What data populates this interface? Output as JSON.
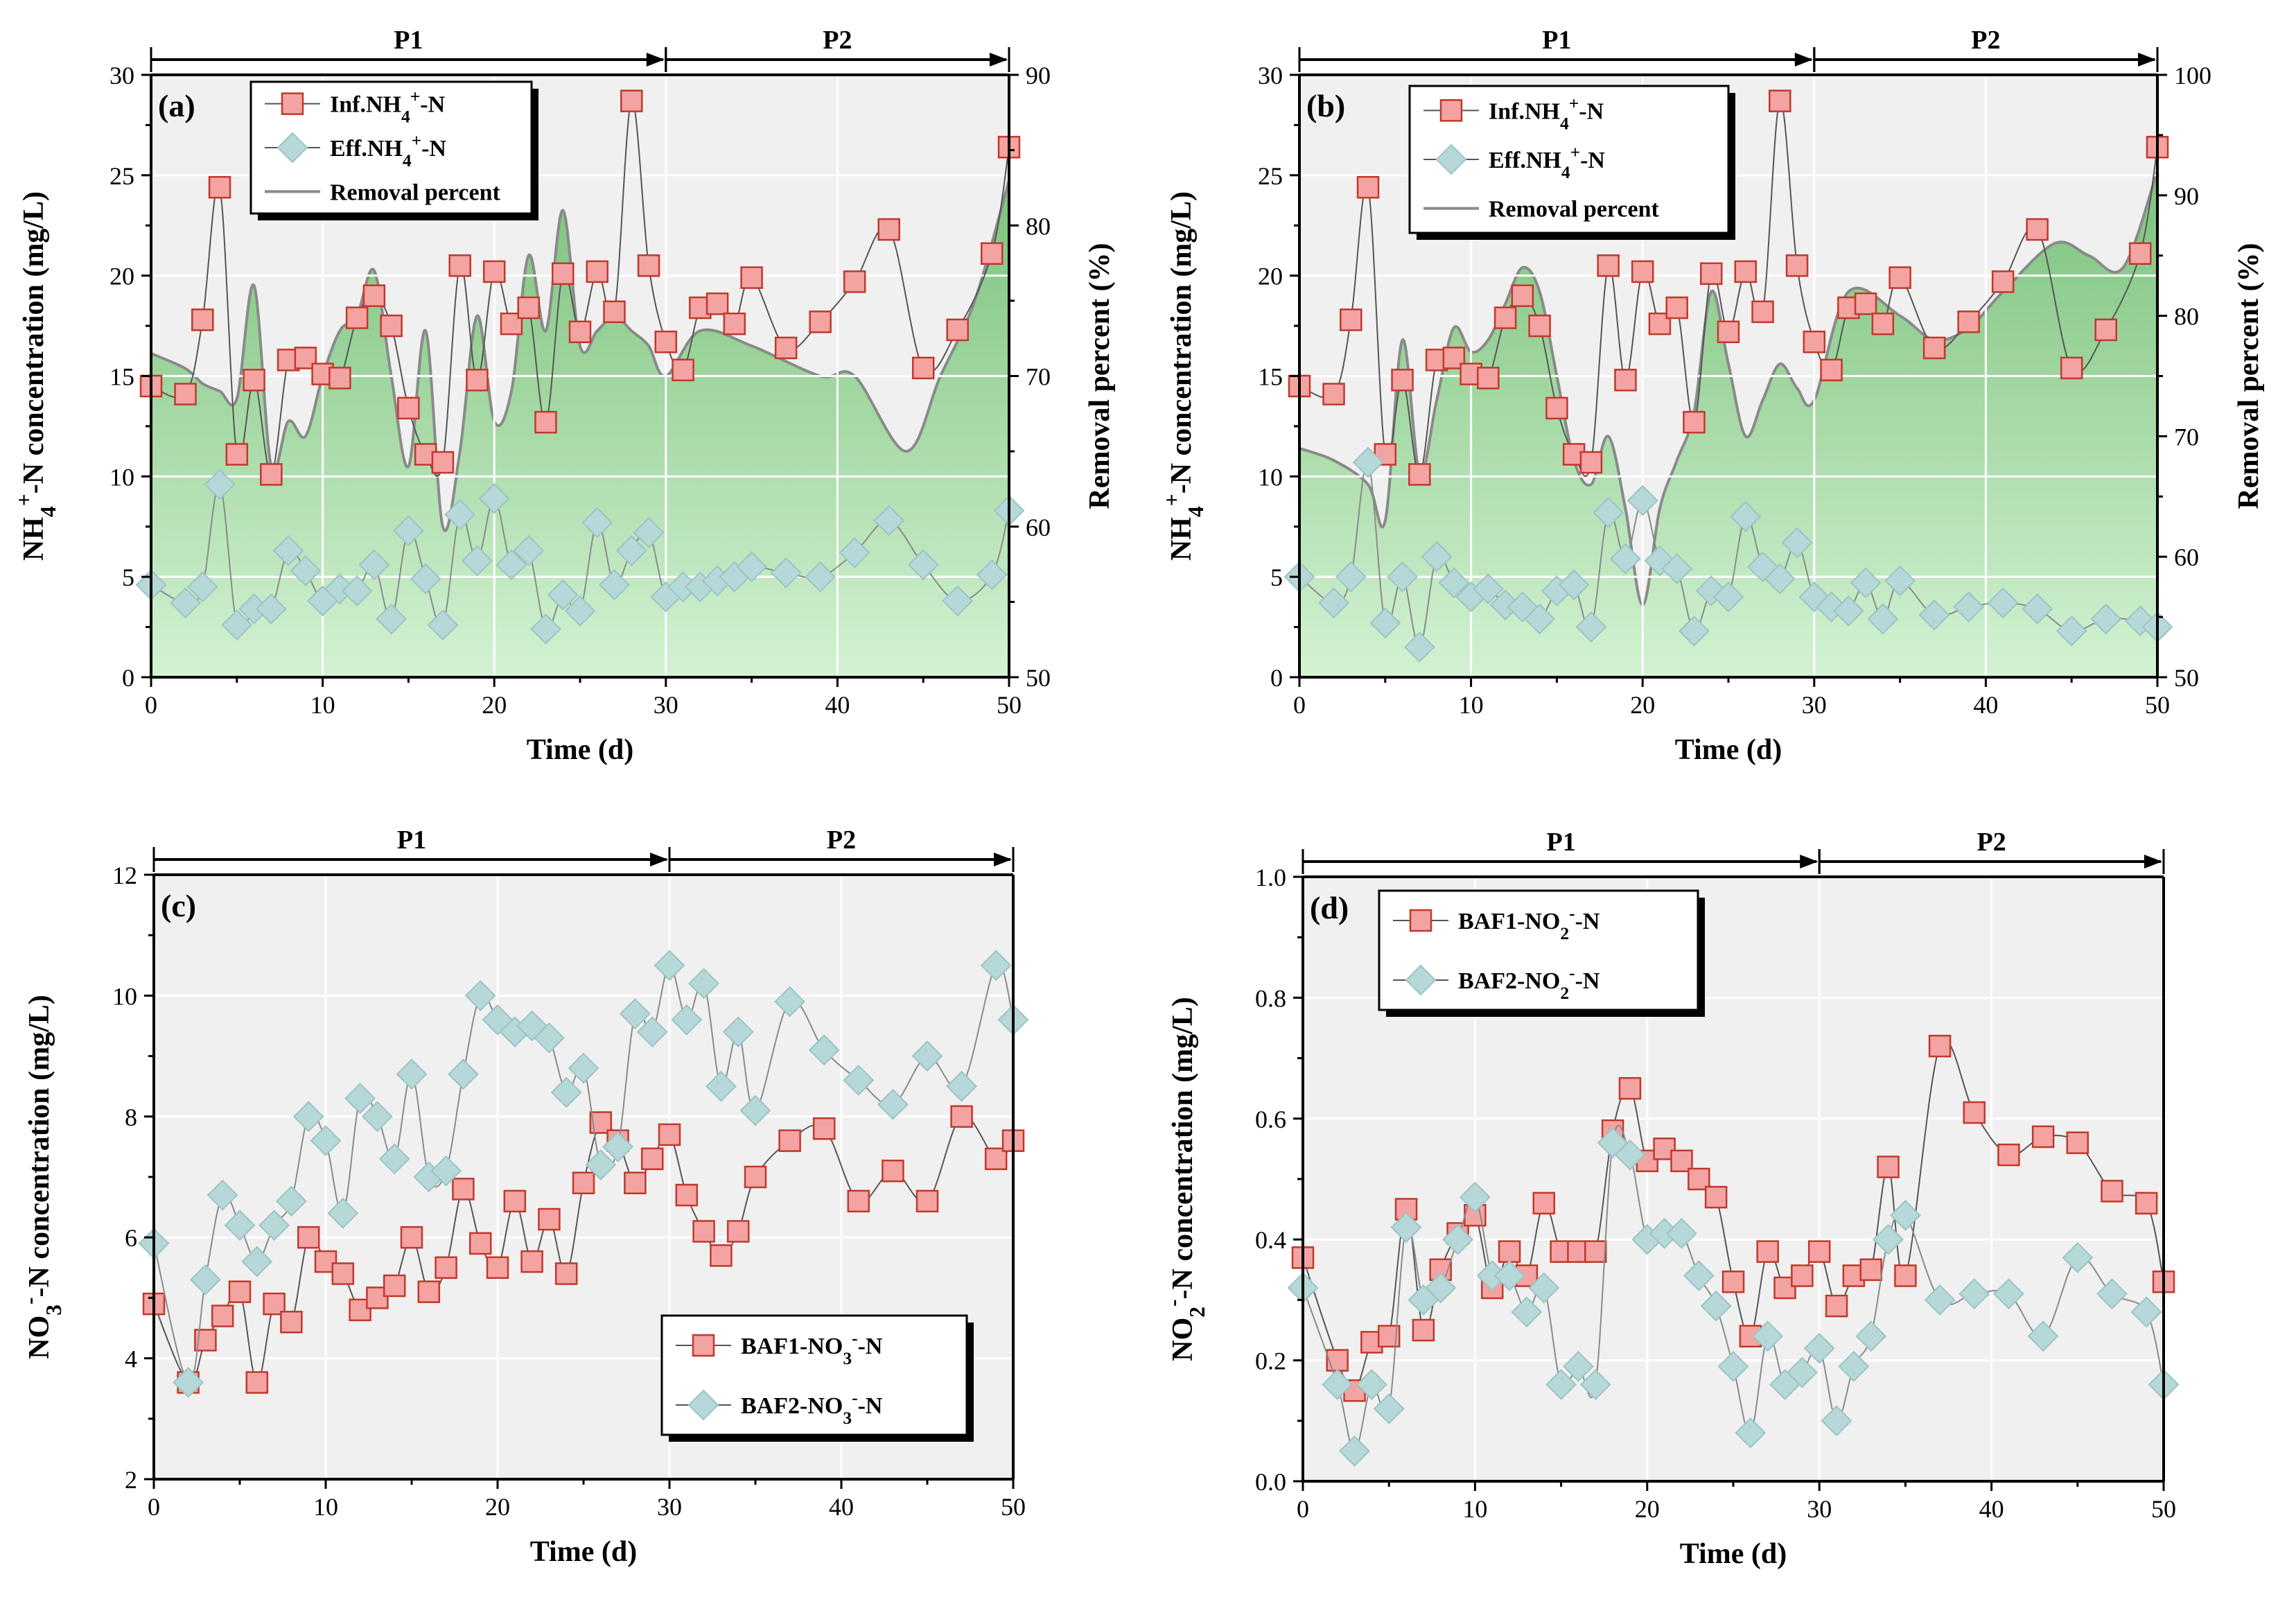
{
  "chart_data": [
    {
      "type": "line",
      "panel_label": "(a)",
      "xlabel": "Time (d)",
      "ylabel": "NH4+-N concentration (mg/L)",
      "y2label": "Removal percent (%)",
      "xlim": [
        0,
        50
      ],
      "ylim": [
        0,
        30
      ],
      "y2lim": [
        50,
        90
      ],
      "xticks": [
        "0",
        "10",
        "20",
        "30",
        "40",
        "50"
      ],
      "yticks": [
        "0",
        "5",
        "10",
        "15",
        "20",
        "25",
        "30"
      ],
      "y2ticks": [
        "50",
        "60",
        "70",
        "80",
        "90"
      ],
      "phases": [
        {
          "label": "P1",
          "start": 0,
          "end": 30
        },
        {
          "label": "P2",
          "start": 30,
          "end": 50
        }
      ],
      "legend": [
        "Inf.NH4+-N",
        "Eff.NH4+-N",
        "Removal percent"
      ],
      "series": [
        {
          "name": "Inf.NH4+-N",
          "marker": "square",
          "color": "#f4a3a3",
          "x": [
            0,
            2,
            3,
            4,
            5,
            6,
            7,
            8,
            9,
            10,
            11,
            12,
            13,
            14,
            15,
            16,
            17,
            18,
            19,
            20,
            21,
            22,
            23,
            24,
            25,
            26,
            27,
            28,
            29,
            30,
            31,
            32,
            33,
            34,
            35,
            37,
            39,
            41,
            43,
            45,
            47,
            49,
            50
          ],
          "y": [
            14.5,
            14.1,
            17.8,
            24.4,
            11.1,
            14.8,
            10.1,
            15.8,
            15.9,
            15.1,
            14.9,
            17.9,
            19,
            17.5,
            13.4,
            11.1,
            10.7,
            20.5,
            14.8,
            20.2,
            17.6,
            18.4,
            12.7,
            20.1,
            17.2,
            20.2,
            18.2,
            28.7,
            20.5,
            16.7,
            15.3,
            18.4,
            18.6,
            17.6,
            19.9,
            16.4,
            17.7,
            19.7,
            22.3,
            15.4,
            17.3,
            21.1,
            26.4
          ]
        },
        {
          "name": "Eff.NH4+-N",
          "marker": "diamond",
          "color": "#b7d8d8",
          "x": [
            0,
            2,
            3,
            4,
            5,
            6,
            7,
            8,
            9,
            10,
            11,
            12,
            13,
            14,
            15,
            16,
            17,
            18,
            19,
            20,
            21,
            22,
            23,
            24,
            25,
            26,
            27,
            28,
            29,
            30,
            31,
            32,
            33,
            34,
            35,
            37,
            39,
            41,
            43,
            45,
            47,
            49,
            50
          ],
          "y": [
            4.6,
            3.7,
            4.5,
            9.6,
            2.6,
            3.4,
            3.4,
            6.3,
            5.3,
            3.8,
            4.4,
            4.3,
            5.6,
            2.9,
            7.3,
            4.9,
            2.6,
            8.1,
            5.8,
            8.9,
            5.6,
            6.3,
            2.4,
            4.1,
            3.3,
            7.7,
            4.6,
            6.3,
            7.2,
            4,
            4.5,
            4.5,
            4.8,
            5,
            5.5,
            5.2,
            5,
            6.2,
            7.8,
            5.6,
            3.8,
            5.1,
            8.3
          ]
        },
        {
          "name": "Removal percent",
          "type": "area",
          "color": "#8cc98c",
          "x": [
            0,
            2,
            3,
            4,
            5,
            6,
            7,
            8,
            9,
            10,
            11,
            12,
            13,
            14,
            15,
            16,
            17,
            18,
            19,
            20,
            21,
            22,
            23,
            24,
            25,
            26,
            27,
            28,
            29,
            30,
            32,
            35,
            39,
            41,
            44,
            46,
            48,
            50
          ],
          "y": [
            71.5,
            70.5,
            69.5,
            69,
            68.5,
            76,
            64,
            67,
            66,
            70,
            73,
            74,
            77,
            70,
            64,
            73,
            60,
            65,
            74,
            67,
            69,
            78,
            73,
            81,
            72,
            73,
            74,
            73,
            72,
            70,
            73,
            72,
            70,
            70,
            65,
            70,
            75,
            83
          ]
        }
      ]
    },
    {
      "type": "line",
      "panel_label": "(b)",
      "xlabel": "Time (d)",
      "ylabel": "NH4+-N concentration (mg/L)",
      "y2label": "Removal percent (%)",
      "xlim": [
        0,
        50
      ],
      "ylim": [
        0,
        30
      ],
      "y2lim": [
        50,
        100
      ],
      "xticks": [
        "0",
        "10",
        "20",
        "30",
        "40",
        "50"
      ],
      "yticks": [
        "0",
        "5",
        "10",
        "15",
        "20",
        "25",
        "30"
      ],
      "y2ticks": [
        "50",
        "60",
        "70",
        "80",
        "90",
        "100"
      ],
      "phases": [
        {
          "label": "P1",
          "start": 0,
          "end": 30
        },
        {
          "label": "P2",
          "start": 30,
          "end": 50
        }
      ],
      "legend": [
        "Inf.NH4+-N",
        "Eff.NH4+-N",
        "Removal percent"
      ],
      "series": [
        {
          "name": "Inf.NH4+-N",
          "marker": "square",
          "color": "#f4a3a3",
          "x": [
            0,
            2,
            3,
            4,
            5,
            6,
            7,
            8,
            9,
            10,
            11,
            12,
            13,
            14,
            15,
            16,
            17,
            18,
            19,
            20,
            21,
            22,
            23,
            24,
            25,
            26,
            27,
            28,
            29,
            30,
            31,
            32,
            33,
            34,
            35,
            37,
            39,
            41,
            43,
            45,
            47,
            49,
            50
          ],
          "y": [
            14.5,
            14.1,
            17.8,
            24.4,
            11.1,
            14.8,
            10.1,
            15.8,
            15.9,
            15.1,
            14.9,
            17.9,
            19,
            17.5,
            13.4,
            11.1,
            10.7,
            20.5,
            14.8,
            20.2,
            17.6,
            18.4,
            12.7,
            20.1,
            17.2,
            20.2,
            18.2,
            28.7,
            20.5,
            16.7,
            15.3,
            18.4,
            18.6,
            17.6,
            19.9,
            16.4,
            17.7,
            19.7,
            22.3,
            15.4,
            17.3,
            21.1,
            26.4
          ]
        },
        {
          "name": "Eff.NH4+-N",
          "marker": "diamond",
          "color": "#b7d8d8",
          "x": [
            0,
            2,
            3,
            4,
            5,
            6,
            7,
            8,
            9,
            10,
            11,
            12,
            13,
            14,
            15,
            16,
            17,
            18,
            19,
            20,
            21,
            22,
            23,
            24,
            25,
            26,
            27,
            28,
            29,
            30,
            31,
            32,
            33,
            34,
            35,
            37,
            39,
            41,
            43,
            45,
            47,
            49,
            50
          ],
          "y": [
            5,
            3.7,
            5,
            10.7,
            2.7,
            5,
            1.5,
            6,
            4.7,
            4,
            4.4,
            3.6,
            3.5,
            2.9,
            4.3,
            4.6,
            2.5,
            8.2,
            5.9,
            8.8,
            5.8,
            5.4,
            2.3,
            4.3,
            4,
            8,
            5.5,
            4.9,
            6.7,
            4,
            3.5,
            3.3,
            4.7,
            2.9,
            4.8,
            3.1,
            3.5,
            3.7,
            3.4,
            2.3,
            2.9,
            2.8,
            2.5
          ]
        },
        {
          "name": "Removal percent",
          "type": "area",
          "color": "#8cc98c",
          "x": [
            0,
            2,
            4,
            5,
            6,
            7,
            8,
            9,
            10,
            11,
            12,
            13,
            14,
            15,
            16,
            17,
            18,
            19,
            20,
            21,
            22,
            23,
            24,
            25,
            26,
            27,
            28,
            29,
            30,
            32,
            35,
            37,
            39,
            41,
            44,
            46,
            48,
            50
          ],
          "y": [
            69,
            68,
            66,
            63,
            78,
            67,
            73,
            79,
            77,
            78,
            81,
            84,
            82,
            75,
            68,
            66,
            70,
            64,
            56,
            64,
            68,
            72,
            82,
            76,
            70,
            73,
            76,
            74,
            73,
            82,
            80,
            78,
            79,
            82,
            86,
            85,
            84,
            92
          ]
        }
      ]
    },
    {
      "type": "line",
      "panel_label": "(c)",
      "xlabel": "Time (d)",
      "ylabel": "NO3--N concentration (mg/L)",
      "xlim": [
        0,
        50
      ],
      "ylim": [
        2,
        12
      ],
      "xticks": [
        "0",
        "10",
        "20",
        "30",
        "40",
        "50"
      ],
      "yticks": [
        "2",
        "4",
        "6",
        "8",
        "10",
        "12"
      ],
      "phases": [
        {
          "label": "P1",
          "start": 0,
          "end": 30
        },
        {
          "label": "P2",
          "start": 30,
          "end": 50
        }
      ],
      "legend": [
        "BAF1-NO3--N",
        "BAF2-NO3--N"
      ],
      "series": [
        {
          "name": "BAF1-NO3--N",
          "marker": "square",
          "color": "#f4a3a3",
          "x": [
            0,
            2,
            3,
            4,
            5,
            6,
            7,
            8,
            9,
            10,
            11,
            12,
            13,
            14,
            15,
            16,
            17,
            18,
            19,
            20,
            21,
            22,
            23,
            24,
            25,
            26,
            27,
            28,
            29,
            30,
            31,
            32,
            33,
            34,
            35,
            37,
            39,
            41,
            43,
            45,
            47,
            49,
            50
          ],
          "y": [
            4.9,
            3.6,
            4.3,
            4.7,
            5.1,
            3.6,
            4.9,
            4.6,
            6,
            5.6,
            5.4,
            4.8,
            5,
            5.2,
            6,
            5.1,
            5.5,
            6.8,
            5.9,
            5.5,
            6.6,
            5.6,
            6.3,
            5.4,
            6.9,
            7.9,
            7.6,
            6.9,
            7.3,
            7.7,
            6.7,
            6.1,
            5.7,
            6.1,
            7,
            7.6,
            7.8,
            6.6,
            7.1,
            6.6,
            8,
            7.3,
            7.6
          ]
        },
        {
          "name": "BAF2-NO3--N",
          "marker": "diamond",
          "color": "#b7d8d8",
          "x": [
            0,
            2,
            3,
            4,
            5,
            6,
            7,
            8,
            9,
            10,
            11,
            12,
            13,
            14,
            15,
            16,
            17,
            18,
            19,
            20,
            21,
            22,
            23,
            24,
            25,
            26,
            27,
            28,
            29,
            30,
            31,
            32,
            33,
            34,
            35,
            37,
            39,
            41,
            43,
            45,
            47,
            49,
            50
          ],
          "y": [
            5.9,
            3.6,
            5.3,
            6.7,
            6.2,
            5.6,
            6.2,
            6.6,
            8,
            7.6,
            6.4,
            8.3,
            8,
            7.3,
            8.7,
            7,
            7.1,
            8.7,
            10,
            9.6,
            9.4,
            9.5,
            9.3,
            8.4,
            8.8,
            7.2,
            7.5,
            9.7,
            9.4,
            10.5,
            9.6,
            10.2,
            8.5,
            9.4,
            8.1,
            9.9,
            9.1,
            8.6,
            8.2,
            9,
            8.5,
            10.5,
            9.6
          ]
        }
      ]
    },
    {
      "type": "line",
      "panel_label": "(d)",
      "xlabel": "Time (d)",
      "ylabel": "NO2--N concentration (mg/L)",
      "xlim": [
        0,
        50
      ],
      "ylim": [
        0,
        1
      ],
      "xticks": [
        "0",
        "10",
        "20",
        "30",
        "40",
        "50"
      ],
      "yticks": [
        "0.0",
        "0.2",
        "0.4",
        "0.6",
        "0.8",
        "1.0"
      ],
      "phases": [
        {
          "label": "P1",
          "start": 0,
          "end": 30
        },
        {
          "label": "P2",
          "start": 30,
          "end": 50
        }
      ],
      "legend": [
        "BAF1-NO2--N",
        "BAF2-NO2--N"
      ],
      "series": [
        {
          "name": "BAF1-NO2--N",
          "marker": "square",
          "color": "#f4a3a3",
          "x": [
            0,
            2,
            3,
            4,
            5,
            6,
            7,
            8,
            9,
            10,
            11,
            12,
            13,
            14,
            15,
            16,
            17,
            18,
            19,
            20,
            21,
            22,
            23,
            24,
            25,
            26,
            27,
            28,
            29,
            30,
            31,
            32,
            33,
            34,
            35,
            37,
            39,
            41,
            43,
            45,
            47,
            49,
            50
          ],
          "y": [
            0.37,
            0.2,
            0.15,
            0.23,
            0.24,
            0.45,
            0.25,
            0.35,
            0.41,
            0.44,
            0.32,
            0.38,
            0.34,
            0.46,
            0.38,
            0.38,
            0.38,
            0.58,
            0.65,
            0.53,
            0.55,
            0.53,
            0.5,
            0.47,
            0.33,
            0.24,
            0.38,
            0.32,
            0.34,
            0.38,
            0.29,
            0.34,
            0.35,
            0.52,
            0.34,
            0.72,
            0.61,
            0.54,
            0.57,
            0.56,
            0.48,
            0.46,
            0.33
          ]
        },
        {
          "name": "BAF2-NO2--N",
          "marker": "diamond",
          "color": "#b7d8d8",
          "x": [
            0,
            2,
            3,
            4,
            5,
            6,
            7,
            8,
            9,
            10,
            11,
            12,
            13,
            14,
            15,
            16,
            17,
            18,
            19,
            20,
            21,
            22,
            23,
            24,
            25,
            26,
            27,
            28,
            29,
            30,
            31,
            32,
            33,
            34,
            35,
            37,
            39,
            41,
            43,
            45,
            47,
            49,
            50
          ],
          "y": [
            0.32,
            0.16,
            0.05,
            0.16,
            0.12,
            0.42,
            0.3,
            0.32,
            0.4,
            0.47,
            0.34,
            0.34,
            0.28,
            0.32,
            0.16,
            0.19,
            0.16,
            0.56,
            0.54,
            0.4,
            0.41,
            0.41,
            0.34,
            0.29,
            0.19,
            0.08,
            0.24,
            0.16,
            0.18,
            0.22,
            0.1,
            0.19,
            0.24,
            0.4,
            0.44,
            0.3,
            0.31,
            0.31,
            0.24,
            0.37,
            0.31,
            0.28,
            0.16
          ]
        }
      ]
    }
  ]
}
